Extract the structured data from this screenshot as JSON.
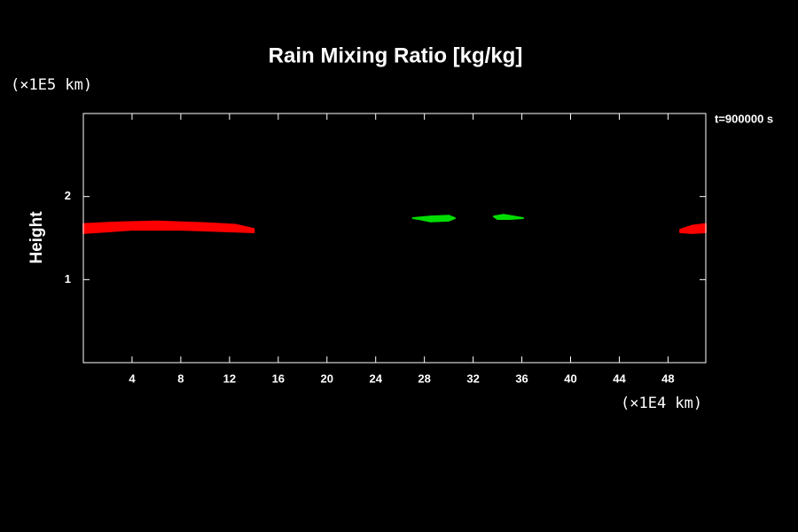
{
  "chart_data": {
    "type": "contour",
    "title": "Rain Mixing Ratio [kg/kg]",
    "y_label": "Height",
    "y_unit": "(×1E5 km)",
    "x_unit": "(×1E4 km)",
    "time_label": "t=900000 s",
    "xlim": [
      0,
      51.1
    ],
    "ylim": [
      0,
      3
    ],
    "xticks": [
      4,
      8,
      12,
      16,
      20,
      24,
      28,
      32,
      36,
      40,
      44,
      48
    ],
    "yticks": [
      1,
      2
    ],
    "regions": [
      {
        "color": "#ff0000",
        "x": [
          0,
          3,
          6,
          10,
          12.5,
          14,
          14,
          12,
          8,
          4,
          0
        ],
        "y": [
          1.67,
          1.69,
          1.7,
          1.68,
          1.66,
          1.61,
          1.57,
          1.58,
          1.6,
          1.6,
          1.56
        ]
      },
      {
        "color": "#ff0000",
        "x": [
          49,
          50,
          51.1,
          51.1,
          50,
          49
        ],
        "y": [
          1.6,
          1.65,
          1.67,
          1.57,
          1.56,
          1.57
        ]
      },
      {
        "color": "#00dd00",
        "x": [
          27.05,
          28.5,
          30,
          30.5,
          30,
          28.5,
          27.5
        ],
        "y": [
          1.74,
          1.76,
          1.77,
          1.74,
          1.71,
          1.7,
          1.73
        ]
      },
      {
        "color": "#00dd00",
        "x": [
          33.7,
          34.5,
          36.1,
          35,
          34
        ],
        "y": [
          1.76,
          1.78,
          1.74,
          1.73,
          1.73
        ]
      }
    ]
  }
}
